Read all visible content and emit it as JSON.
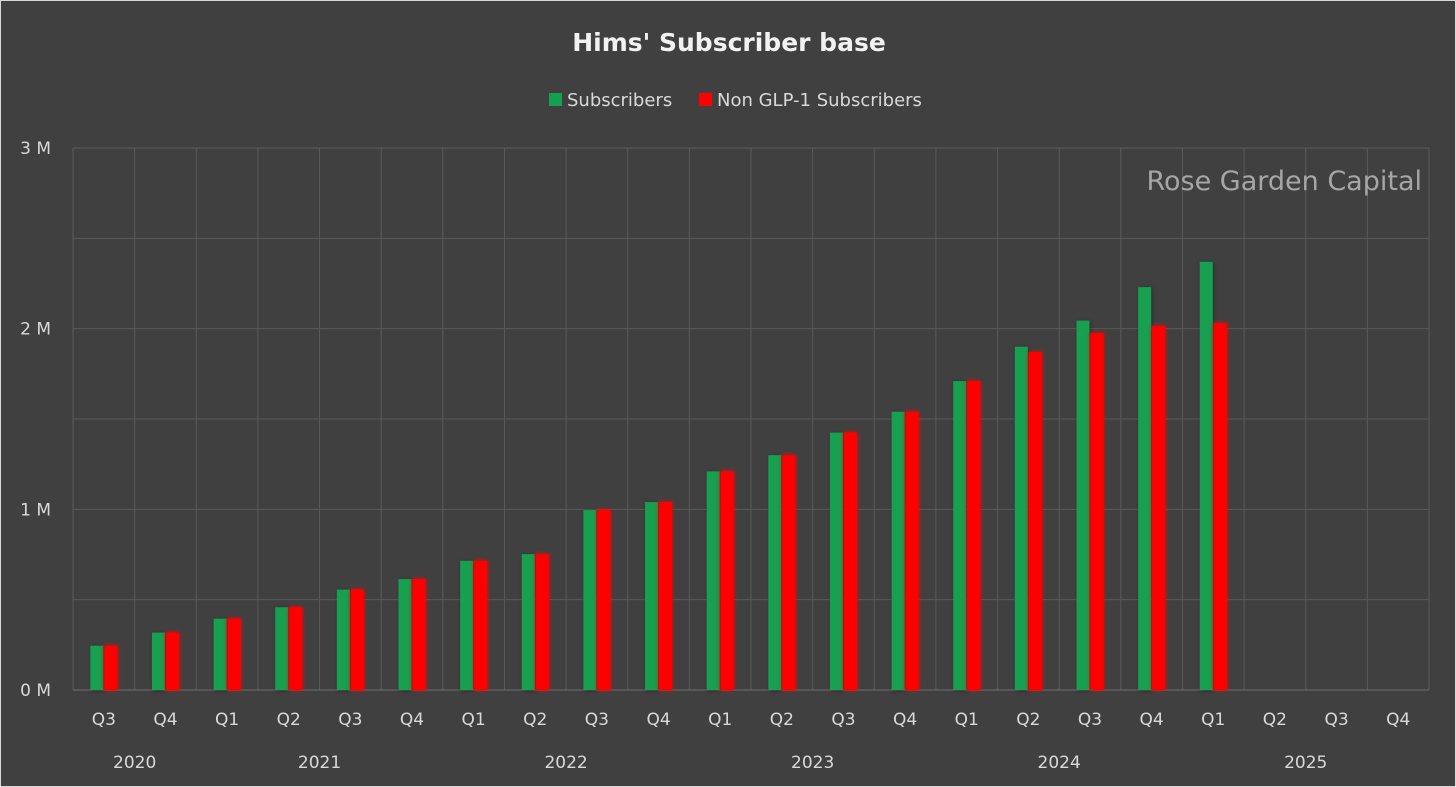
{
  "chart_data": {
    "type": "bar",
    "title": "Hims' Subscriber base",
    "xlabel": "",
    "ylabel": "",
    "ylim": [
      0,
      3000000
    ],
    "yticks": [
      {
        "value": 0,
        "label": "0 M"
      },
      {
        "value": 1000000,
        "label": "1 M"
      },
      {
        "value": 2000000,
        "label": "2 M"
      },
      {
        "value": 3000000,
        "label": "3 M"
      }
    ],
    "categories": [
      "Q3",
      "Q4",
      "Q1",
      "Q2",
      "Q3",
      "Q4",
      "Q1",
      "Q2",
      "Q3",
      "Q4",
      "Q1",
      "Q2",
      "Q3",
      "Q4",
      "Q1",
      "Q2",
      "Q3",
      "Q4",
      "Q1",
      "Q2",
      "Q3",
      "Q4"
    ],
    "year_groups": [
      {
        "label": "2020",
        "start": 0,
        "count": 2
      },
      {
        "label": "2021",
        "start": 2,
        "count": 4
      },
      {
        "label": "2022",
        "start": 6,
        "count": 4
      },
      {
        "label": "2023",
        "start": 10,
        "count": 4
      },
      {
        "label": "2024",
        "start": 14,
        "count": 4
      },
      {
        "label": "2025",
        "start": 18,
        "count": 4
      }
    ],
    "series": [
      {
        "name": "Subscribers",
        "color": "#13a050",
        "values": [
          245000,
          318000,
          395000,
          458000,
          556000,
          614000,
          715000,
          752000,
          996000,
          1040000,
          1210000,
          1300000,
          1425000,
          1540000,
          1710000,
          1900000,
          2045000,
          2230000,
          2370000,
          null,
          null,
          null
        ]
      },
      {
        "name": "Non GLP-1 Subscribers",
        "color": "#ff0000",
        "values": [
          245000,
          318000,
          395000,
          458000,
          556000,
          614000,
          715000,
          752000,
          996000,
          1040000,
          1210000,
          1300000,
          1425000,
          1540000,
          1710000,
          1870000,
          1975000,
          2015000,
          2030000,
          null,
          null,
          null
        ]
      }
    ],
    "legend_position": "top-center",
    "grid": true,
    "watermark": "Rose Garden Capital"
  }
}
